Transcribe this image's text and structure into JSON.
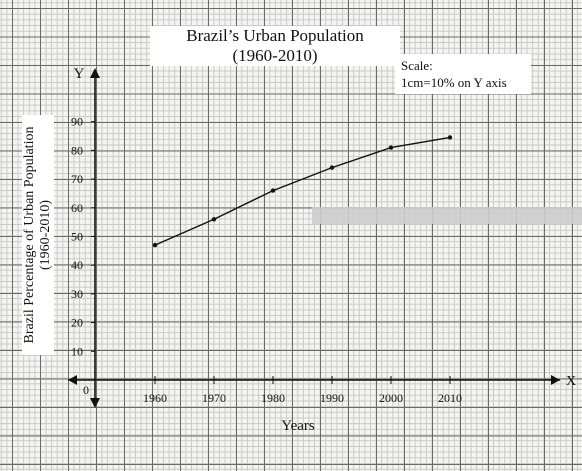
{
  "chart_data": {
    "type": "line",
    "title": "Brazil’s Urban Population",
    "subtitle": "(1960-2010)",
    "xlabel": "Years",
    "ylabel": "Brazil Percentage of Urban Population",
    "ylabel_sub": "(1960-2010)",
    "x_axis_letter": "X",
    "y_axis_letter": "Y",
    "origin_label": "0",
    "scale_note_title": "Scale:",
    "scale_note_body": "1cm=10% on Y axis",
    "x": [
      1960,
      1970,
      1980,
      1990,
      2000,
      2010
    ],
    "xticks": [
      "1960",
      "1970",
      "1980",
      "1990",
      "2000",
      "2010"
    ],
    "yticks": [
      "10",
      "20",
      "30",
      "40",
      "50",
      "60",
      "70",
      "80",
      "90"
    ],
    "ylim": [
      0,
      90
    ],
    "series": [
      {
        "values": [
          47,
          56,
          66,
          74,
          81,
          84.5
        ]
      }
    ],
    "grid": true,
    "colors": {
      "line": "#111111",
      "grid_major": "#6a6a6a",
      "grid_minor": "#c8c8c8"
    }
  }
}
